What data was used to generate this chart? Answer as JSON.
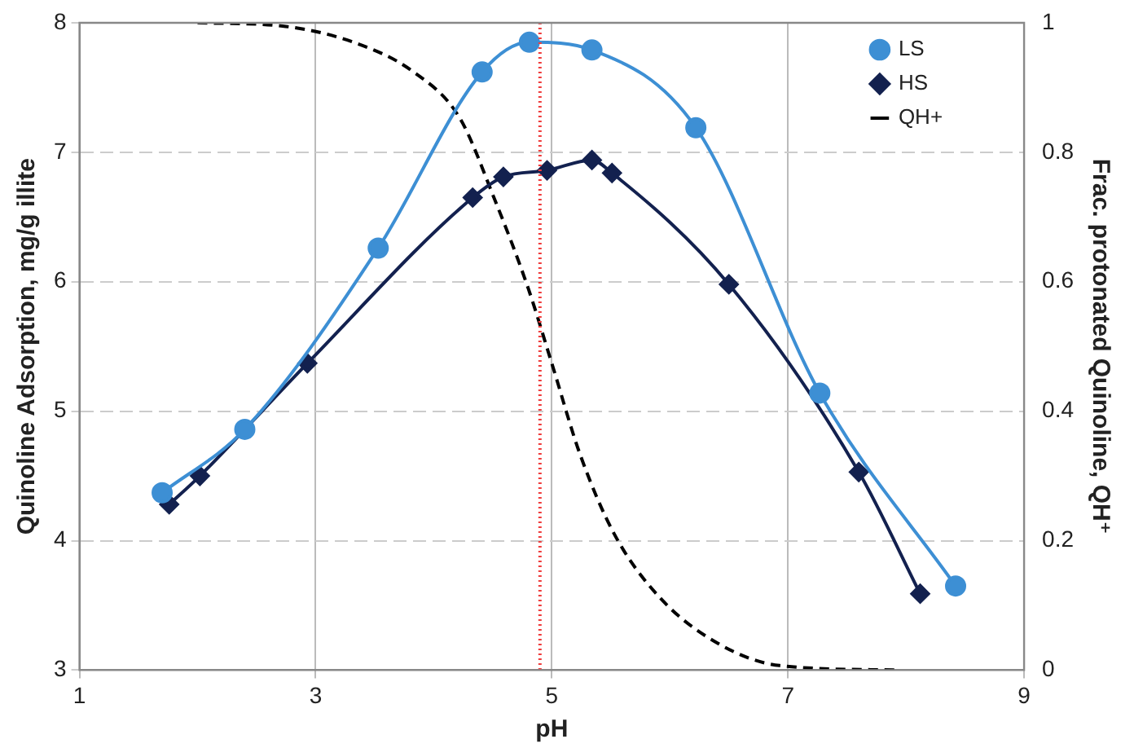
{
  "chart_data": {
    "type": "line",
    "xlabel": "pH",
    "ylabel": "Quinoline Adsorption, mg/g illite",
    "y2label": "Frac. protonated Quinoline, QH⁺",
    "xlim": [
      1,
      9
    ],
    "xticks": [
      1,
      3,
      5,
      7,
      9
    ],
    "ylim": [
      3,
      8
    ],
    "yticks": [
      3,
      4,
      5,
      6,
      7,
      8
    ],
    "y2lim": [
      0,
      1
    ],
    "y2ticks": [
      0,
      0.2,
      0.4,
      0.6,
      0.8,
      1
    ],
    "grid": true,
    "legend": "top right",
    "series": [
      {
        "name": "LS",
        "color": "#3d8fd4",
        "marker": "circle",
        "line_style": "solid",
        "x": [
          1.7,
          2.4,
          3.53,
          4.41,
          4.81,
          5.34,
          6.22,
          7.27,
          8.42
        ],
        "values": [
          4.37,
          4.86,
          6.26,
          7.62,
          7.85,
          7.79,
          7.19,
          5.14,
          3.65
        ]
      },
      {
        "name": "HS",
        "color": "#13214f",
        "marker": "diamond",
        "line_style": "solid",
        "x": [
          1.76,
          2.02,
          2.93,
          4.33,
          4.59,
          4.96,
          5.34,
          5.51,
          6.5,
          7.6,
          8.12
        ],
        "values": [
          4.28,
          4.5,
          5.37,
          6.65,
          6.81,
          6.86,
          6.94,
          6.84,
          5.98,
          4.53,
          3.59
        ]
      },
      {
        "name": "QH+",
        "color": "#000000",
        "marker": "none",
        "line_style": "dashed",
        "axis": "y2",
        "x": [
          2.0,
          2.72,
          3.35,
          3.83,
          4.22,
          4.51,
          4.8,
          5.0,
          5.24,
          5.53,
          5.91,
          6.4,
          6.93,
          7.94
        ],
        "values": [
          1.0,
          0.995,
          0.968,
          0.924,
          0.853,
          0.73,
          0.59,
          0.474,
          0.333,
          0.21,
          0.113,
          0.042,
          0.007,
          0.0
        ]
      }
    ],
    "ref_lines": [
      {
        "axis": "x",
        "value": 4.9,
        "color": "#f03c3c",
        "line_style": "dotted"
      }
    ]
  }
}
